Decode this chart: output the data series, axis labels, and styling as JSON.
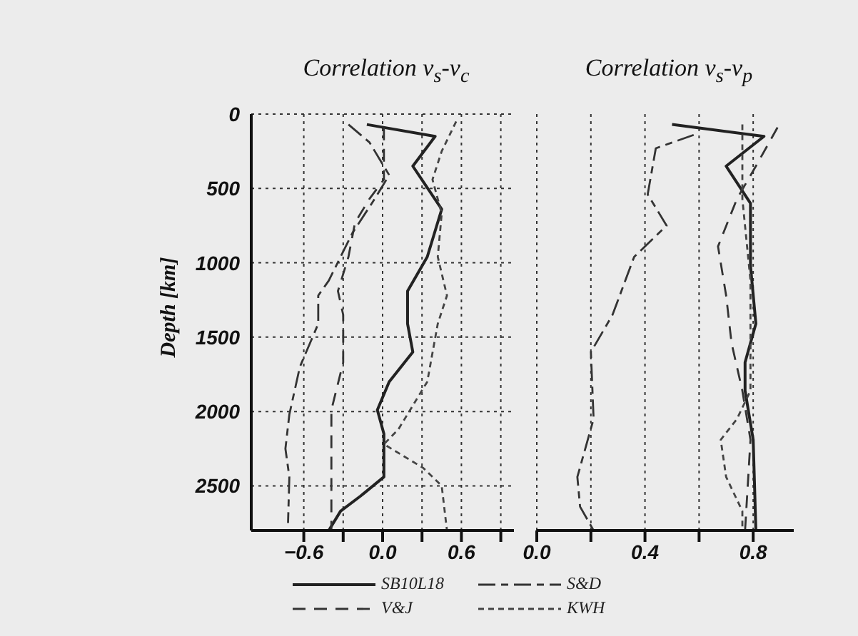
{
  "chart_data": [
    {
      "type": "line",
      "title": "Correlation v$_{s}$-v$_{c}$",
      "ylabel": "Depth [km]",
      "xlim": [
        -1.0,
        1.0
      ],
      "xticks": [
        -0.6,
        {
          "value": -0.3,
          "label": null
        },
        {
          "value": 0,
          "label": "0.0"
        },
        {
          "value": 0.3,
          "label": null
        },
        0.6,
        {
          "value": 0.9,
          "label": null
        }
      ],
      "ylim": [
        2800,
        0
      ],
      "yticks": [
        0,
        500,
        1000,
        1500,
        2000,
        2500
      ],
      "grid": true,
      "legend": "bottom",
      "marker": "none",
      "series": [
        {
          "name": "SB10L18",
          "color": "#222222",
          "line_style": "solid",
          "x": [
            -0.12,
            0.4,
            0.23,
            0.45,
            0.34,
            0.19,
            0.19,
            0.23,
            0.05,
            -0.04,
            0.01,
            0.01,
            -0.17,
            -0.32,
            -0.41
          ],
          "values": [
            70,
            150,
            350,
            640,
            960,
            1190,
            1410,
            1600,
            1800,
            1990,
            2150,
            2440,
            2570,
            2670,
            2800
          ]
        },
        {
          "name": "V&J",
          "color": "#333333",
          "line_style": "dashed",
          "x": [
            0.01,
            0.01,
            -0.1,
            -0.21,
            -0.26,
            -0.34,
            -0.3,
            -0.3,
            -0.39,
            -0.39
          ],
          "values": [
            90,
            440,
            570,
            730,
            960,
            1190,
            1350,
            1670,
            1990,
            2800
          ]
        },
        {
          "name": "S&D",
          "color": "#333333",
          "line_style": "dashed",
          "x": [
            -0.26,
            -0.1,
            0.05,
            -0.06,
            -0.23,
            -0.41,
            -0.49,
            -0.49,
            -0.63,
            -0.71,
            -0.74,
            -0.71,
            -0.72
          ],
          "values": [
            70,
            190,
            410,
            570,
            800,
            1120,
            1220,
            1410,
            1700,
            2020,
            2250,
            2440,
            2750
          ]
        },
        {
          "name": "KWH",
          "color": "#444444",
          "line_style": "dotted",
          "x": [
            0.56,
            0.45,
            0.38,
            0.45,
            0.42,
            0.49,
            0.42,
            0.34,
            0.12,
            0.01,
            0.31,
            0.45,
            0.49
          ],
          "values": [
            50,
            250,
            440,
            670,
            960,
            1220,
            1410,
            1800,
            2120,
            2220,
            2380,
            2500,
            2800
          ]
        }
      ]
    },
    {
      "type": "line",
      "title": "Correlation v$_{s}$-v$_{p}$",
      "xlim": [
        0.0,
        0.95
      ],
      "xticks": [
        {
          "value": 0,
          "label": "0.0"
        },
        {
          "value": 0.2,
          "label": null
        },
        0.4,
        {
          "value": 0.6,
          "label": null
        },
        0.8
      ],
      "ylim": [
        2800,
        0
      ],
      "yticks": [
        0,
        500,
        1000,
        1500,
        2000,
        2500
      ],
      "tick_labels": "x",
      "grid": true,
      "marker": "none",
      "series": [
        {
          "color": "#222222",
          "line_style": "solid",
          "x": [
            0.5,
            0.84,
            0.7,
            0.79,
            0.79,
            0.81,
            0.77,
            0.77,
            0.8,
            0.81
          ],
          "values": [
            70,
            150,
            350,
            600,
            1020,
            1410,
            1670,
            1860,
            2190,
            2800
          ]
        },
        {
          "color": "#333333",
          "line_style": "dashed",
          "x": [
            0.89,
            0.81,
            0.74,
            0.67,
            0.7,
            0.72,
            0.76,
            0.79,
            0.77
          ],
          "values": [
            90,
            350,
            570,
            890,
            1220,
            1540,
            1860,
            2190,
            2800
          ]
        },
        {
          "color": "#333333",
          "line_style": "dashed",
          "x": [
            0.58,
            0.44,
            0.41,
            0.48,
            0.36,
            0.28,
            0.2,
            0.21,
            0.15,
            0.16,
            0.21
          ],
          "values": [
            140,
            230,
            540,
            750,
            960,
            1350,
            1600,
            2050,
            2440,
            2640,
            2800
          ]
        },
        {
          "color": "#444444",
          "line_style": "dotted",
          "x": [
            0.76,
            0.76,
            0.79,
            0.79,
            0.74,
            0.68,
            0.7,
            0.76,
            0.76
          ],
          "values": [
            70,
            570,
            1120,
            1860,
            2050,
            2190,
            2440,
            2670,
            2800
          ]
        }
      ]
    }
  ]
}
